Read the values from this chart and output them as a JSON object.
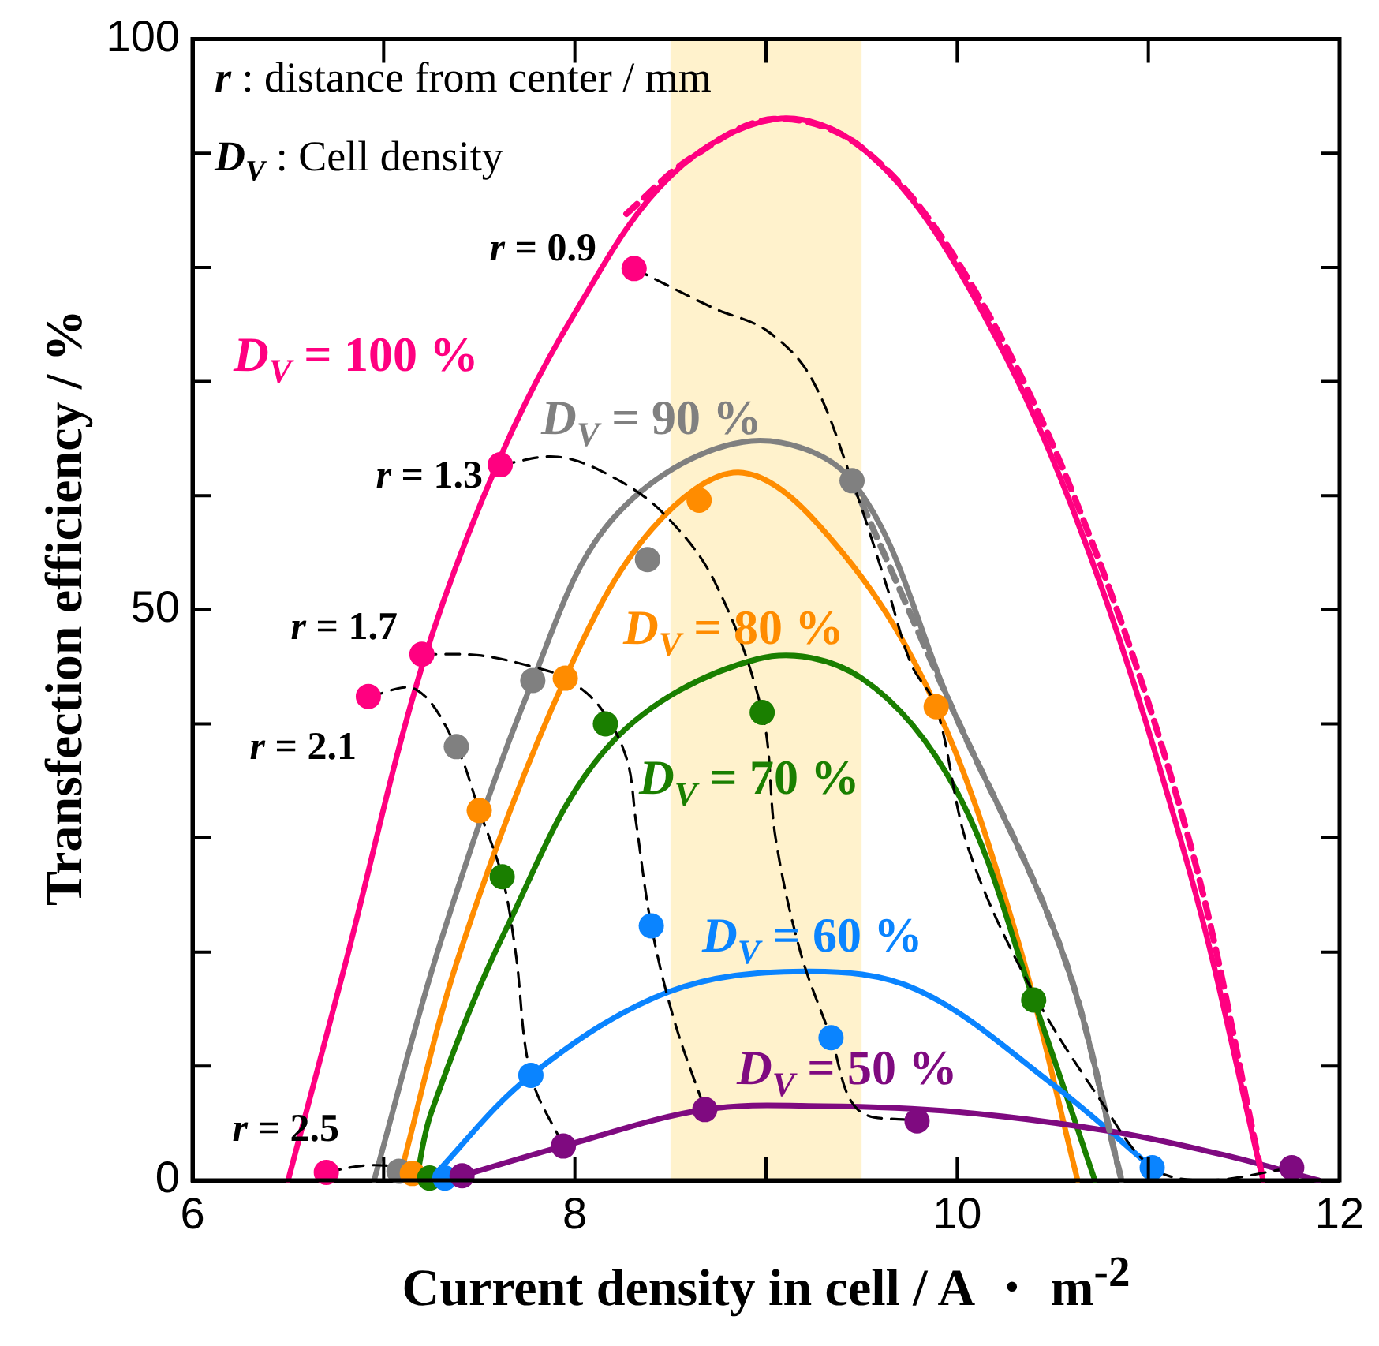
{
  "chart_data": {
    "type": "line",
    "xlabel": "Current density in cell / A ・ m$^{-2}$",
    "ylabel": "Transfection efficiency / %",
    "annotations": [
      "r : distance from center / mm",
      "D$_{V}$ : Cell density"
    ],
    "xlim": [
      6,
      12
    ],
    "ylim": [
      0,
      100
    ],
    "xticks": [
      6,
      {
        "value": 7,
        "label": null
      },
      8,
      {
        "value": 9,
        "label": null
      },
      10,
      {
        "value": 11,
        "label": null
      },
      12
    ],
    "yticks": [
      0,
      {
        "value": 10,
        "label": null
      },
      {
        "value": 20,
        "label": null
      },
      {
        "value": 30,
        "label": null
      },
      {
        "value": 40,
        "label": null
      },
      50,
      {
        "value": 60,
        "label": null
      },
      {
        "value": 70,
        "label": null
      },
      {
        "value": 80,
        "label": null
      },
      {
        "value": 90,
        "label": null
      },
      100
    ],
    "grid": false,
    "legend": false,
    "bands": [
      {
        "axis": "x",
        "from": 8.5,
        "to": 9.5,
        "color": "#fff2cc"
      }
    ],
    "series": [
      {
        "name": "D$_{V}$ = 100 %",
        "type": "line",
        "color": "#ff0080",
        "marker": "none",
        "x": [
          6.5,
          6.8,
          7.2,
          7.6,
          8.0,
          8.5,
          9.05,
          9.5,
          10.0,
          10.6,
          11.2,
          11.6
        ],
        "values": [
          0,
          19,
          45,
          63,
          76,
          88,
          93,
          90.5,
          80,
          59,
          28,
          0
        ]
      },
      {
        "name": "D$_{V}$ = 90 %",
        "type": "line",
        "color": "#808080",
        "marker": "none",
        "x": [
          6.95,
          7.3,
          7.78,
          8.2,
          8.88,
          9.45,
          9.97,
          10.55,
          10.86
        ],
        "values": [
          0,
          21,
          43.8,
          58,
          64.7,
          61.3,
          41.5,
          20,
          0
        ]
      },
      {
        "name": "D$_{V}$ = 80 %",
        "type": "line",
        "color": "#ff8c00",
        "marker": "none",
        "x": [
          7.08,
          7.4,
          7.95,
          8.4,
          8.88,
          9.4,
          9.89,
          10.3,
          10.63
        ],
        "values": [
          0,
          20,
          44,
          57,
          62,
          55,
          41.5,
          22,
          0
        ]
      },
      {
        "name": "D$_{V}$ = 70 %",
        "type": "line",
        "color": "#1a7f00",
        "marker": "none",
        "x": [
          7.17,
          7.25,
          7.64,
          8.19,
          8.96,
          9.5,
          10.0,
          10.4,
          10.72
        ],
        "values": [
          0,
          6,
          22,
          38.3,
          45.7,
          44,
          34,
          15.8,
          0
        ]
      },
      {
        "name": "D$_{V}$ = 60 %",
        "type": "line",
        "color": "#0a84ff",
        "marker": "none",
        "x": [
          7.24,
          7.77,
          8.49,
          9.2,
          9.79,
          10.5,
          11.02
        ],
        "values": [
          0,
          9.2,
          16.5,
          18.3,
          16.7,
          8.4,
          1.1
        ]
      },
      {
        "name": "D$_{V}$ = 50 %",
        "type": "line",
        "color": "#7f0a80",
        "marker": "none",
        "x": [
          7.41,
          7.94,
          8.68,
          9.3,
          10.0,
          10.8,
          11.4,
          11.89
        ],
        "values": [
          0.4,
          3.0,
          6.2,
          6.5,
          6.0,
          4.3,
          2.2,
          0
        ]
      },
      {
        "type": "line",
        "color": "#ff0080",
        "marker": "none",
        "line_style": "dashed",
        "x": [
          8.27,
          8.6,
          9.04,
          9.5,
          10.02,
          10.61,
          11.21,
          11.6
        ],
        "values": [
          84.7,
          89.5,
          93,
          90.5,
          80,
          60,
          30,
          0
        ]
      },
      {
        "type": "line",
        "color": "#808080",
        "marker": "none",
        "line_style": "dashed",
        "x": [
          9.45,
          9.97,
          10.55,
          10.86
        ],
        "values": [
          61.3,
          41.5,
          20,
          0
        ]
      },
      {
        "name": "r = 0.9",
        "type": "line",
        "color": "#000000",
        "marker": "none",
        "line_style": "dashed",
        "x": [
          8.31,
          8.73,
          9.0,
          9.23,
          9.45,
          9.64,
          9.76,
          9.89,
          10.06,
          10.39,
          10.75,
          11.02,
          11.3,
          11.75
        ],
        "values": [
          79.9,
          76.4,
          74.5,
          70.5,
          61.3,
          51.6,
          45.2,
          41.5,
          29,
          16.7,
          7,
          1.1,
          0,
          1.1
        ]
      },
      {
        "name": "r = 1.3",
        "type": "line",
        "color": "#000000",
        "marker": "none",
        "line_style": "dashed",
        "x": [
          7.61,
          7.91,
          8.19,
          8.46,
          8.73,
          8.98,
          9.05,
          9.18,
          9.34,
          9.48,
          9.79
        ],
        "values": [
          62.7,
          63.4,
          61.7,
          58.5,
          52.5,
          41,
          30,
          20,
          12.5,
          6.2,
          5.2
        ]
      },
      {
        "name": "r = 1.7",
        "type": "line",
        "color": "#000000",
        "marker": "none",
        "line_style": "dashed",
        "x": [
          7.2,
          7.5,
          7.78,
          7.95,
          8.13,
          8.27,
          8.32,
          8.4,
          8.52,
          8.68
        ],
        "values": [
          46.1,
          46,
          45,
          44,
          41.5,
          37,
          31.4,
          22.3,
          14,
          6.2
        ]
      },
      {
        "name": "r = 2.1",
        "type": "line",
        "color": "#000000",
        "marker": "none",
        "line_style": "dashed",
        "x": [
          6.92,
          7.17,
          7.38,
          7.5,
          7.62,
          7.69,
          7.77,
          7.94
        ],
        "values": [
          42.4,
          43,
          38,
          32.4,
          26.6,
          20,
          9.2,
          3.0
        ]
      },
      {
        "name": "r = 2.5",
        "type": "line",
        "color": "#000000",
        "marker": "none",
        "line_style": "dashed",
        "x": [
          6.7,
          6.9,
          7.08,
          7.24,
          7.41
        ],
        "values": [
          0.7,
          1.3,
          1.2,
          0.8,
          0.4
        ]
      },
      {
        "type": "scatter",
        "color": "#ff0080",
        "marker": "circle",
        "x": [
          6.7,
          6.92,
          7.2,
          7.61,
          8.31
        ],
        "values": [
          0.7,
          42.4,
          46.1,
          62.7,
          79.9
        ]
      },
      {
        "type": "scatter",
        "color": "#808080",
        "marker": "circle",
        "x": [
          7.08,
          7.38,
          7.78,
          8.38,
          9.45
        ],
        "values": [
          0.8,
          38,
          43.8,
          54.4,
          61.3
        ]
      },
      {
        "type": "scatter",
        "color": "#ff8c00",
        "marker": "circle",
        "x": [
          7.15,
          7.5,
          7.95,
          8.65,
          9.89
        ],
        "values": [
          0.6,
          32.4,
          44,
          59.6,
          41.5
        ]
      },
      {
        "type": "scatter",
        "color": "#1a7f00",
        "marker": "circle",
        "x": [
          7.24,
          7.62,
          8.16,
          8.98,
          10.4
        ],
        "values": [
          0.2,
          26.6,
          40,
          41,
          15.8
        ]
      },
      {
        "type": "scatter",
        "color": "#0a84ff",
        "marker": "circle",
        "x": [
          7.32,
          7.77,
          8.4,
          9.34,
          11.02
        ],
        "values": [
          0.2,
          9.2,
          22.3,
          12.5,
          1.1
        ]
      },
      {
        "type": "scatter",
        "color": "#7f0a80",
        "marker": "circle",
        "x": [
          7.41,
          7.94,
          8.68,
          9.79,
          11.75
        ],
        "values": [
          0.4,
          3.0,
          6.2,
          5.2,
          1.1
        ]
      }
    ]
  }
}
